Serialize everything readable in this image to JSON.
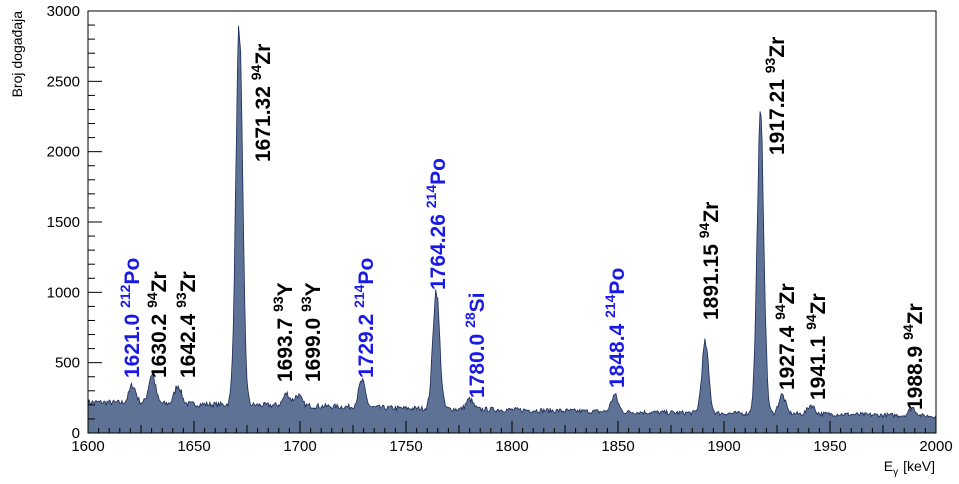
{
  "chart_data": {
    "type": "area",
    "title": "",
    "xlabel": "E",
    "xlabel_sub": "γ",
    "xlabel_unit": "[keV]",
    "ylabel": "Broj događaja",
    "xlim": [
      1600,
      2000
    ],
    "ylim": [
      0,
      3000
    ],
    "x_ticks": [
      1600,
      1650,
      1700,
      1750,
      1800,
      1850,
      1900,
      1950,
      2000
    ],
    "y_ticks": [
      0,
      500,
      1000,
      1500,
      2000,
      2500,
      3000
    ],
    "grid": false,
    "fill_color": "#5d7294",
    "line_color": "#1b2a5a",
    "baseline": [
      [
        1600,
        220
      ],
      [
        1650,
        205
      ],
      [
        1700,
        195
      ],
      [
        1750,
        175
      ],
      [
        1800,
        165
      ],
      [
        1850,
        150
      ],
      [
        1900,
        140
      ],
      [
        1950,
        135
      ],
      [
        2000,
        120
      ]
    ],
    "peaks": [
      {
        "x": 1621.0,
        "height": 340
      },
      {
        "x": 1630.2,
        "height": 420
      },
      {
        "x": 1642.4,
        "height": 340
      },
      {
        "x": 1671.32,
        "height": 2890
      },
      {
        "x": 1693.7,
        "height": 280
      },
      {
        "x": 1699.0,
        "height": 270
      },
      {
        "x": 1729.2,
        "height": 370
      },
      {
        "x": 1764.26,
        "height": 1020
      },
      {
        "x": 1780.0,
        "height": 240
      },
      {
        "x": 1848.4,
        "height": 270
      },
      {
        "x": 1891.15,
        "height": 640
      },
      {
        "x": 1917.21,
        "height": 2250
      },
      {
        "x": 1927.4,
        "height": 270
      },
      {
        "x": 1941.1,
        "height": 200
      },
      {
        "x": 1988.9,
        "height": 180
      }
    ],
    "annotations": [
      {
        "energy": "1621.0",
        "mass": "212",
        "element": "Po",
        "color": "#1a1ae6"
      },
      {
        "energy": "1630.2",
        "mass": "94",
        "element": "Zr",
        "color": "#000000"
      },
      {
        "energy": "1642.4",
        "mass": "93",
        "element": "Zr",
        "color": "#000000"
      },
      {
        "energy": "1671.32",
        "mass": "94",
        "element": "Zr",
        "color": "#000000"
      },
      {
        "energy": "1693.7",
        "mass": "93",
        "element": "Y",
        "color": "#000000"
      },
      {
        "energy": "1699.0",
        "mass": "93",
        "element": "Y",
        "color": "#000000"
      },
      {
        "energy": "1729.2",
        "mass": "214",
        "element": "Po",
        "color": "#1a1ae6"
      },
      {
        "energy": "1764.26",
        "mass": "214",
        "element": "Po",
        "color": "#1a1ae6"
      },
      {
        "energy": "1780.0",
        "mass": "28",
        "element": "Si",
        "color": "#1a1ae6"
      },
      {
        "energy": "1848.4",
        "mass": "214",
        "element": "Po",
        "color": "#1a1ae6"
      },
      {
        "energy": "1891.15",
        "mass": "94",
        "element": "Zr",
        "color": "#000000"
      },
      {
        "energy": "1917.21",
        "mass": "93",
        "element": "Zr",
        "color": "#000000"
      },
      {
        "energy": "1927.4",
        "mass": "94",
        "element": "Zr",
        "color": "#000000"
      },
      {
        "energy": "1941.1",
        "mass": "94",
        "element": "Zr",
        "color": "#000000"
      },
      {
        "energy": "1988.9",
        "mass": "94",
        "element": "Zr",
        "color": "#000000"
      }
    ]
  }
}
